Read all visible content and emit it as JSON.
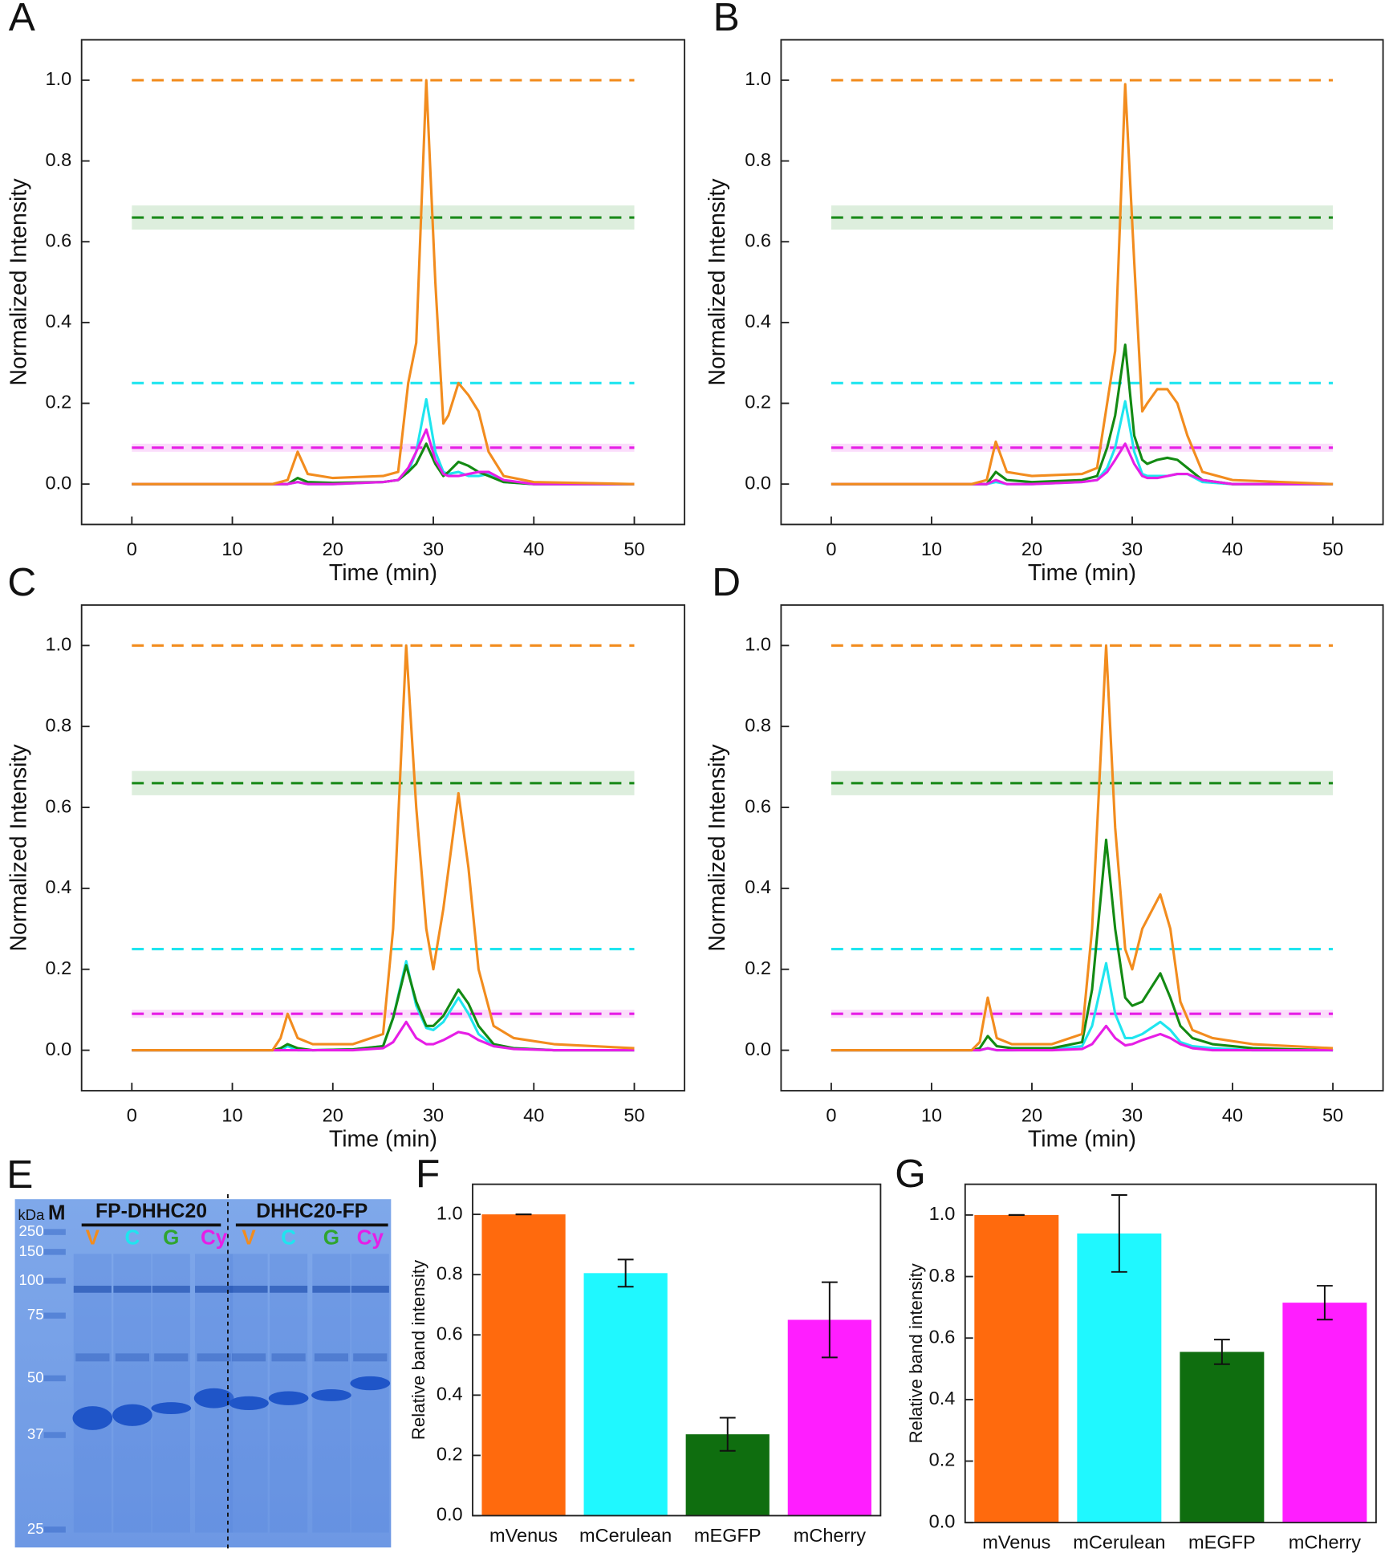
{
  "chart_data": [
    {
      "type": "line",
      "panel_label": "A",
      "xlabel": "Time (min)",
      "ylabel": "Normalized Intensity",
      "xlim": [
        -5,
        55
      ],
      "ylim": [
        -0.1,
        1.1
      ],
      "xticks": [
        0,
        10,
        20,
        30,
        40,
        50
      ],
      "yticks": [
        {
          "value": 0,
          "label": "0.0"
        },
        {
          "value": 0.2,
          "label": "0.2"
        },
        {
          "value": 0.4,
          "label": "0.4"
        },
        {
          "value": 0.6,
          "label": "0.6"
        },
        {
          "value": 0.8,
          "label": "0.8"
        },
        {
          "value": 1,
          "label": "1.0"
        }
      ],
      "reference_lines": [
        {
          "value": 1.0,
          "color": "#f28c1e"
        },
        {
          "value": 0.66,
          "color": "#1a8a1a",
          "band": [
            0.63,
            0.69
          ]
        },
        {
          "value": 0.25,
          "color": "#1fe5ef"
        },
        {
          "value": 0.09,
          "color": "#e61ee6",
          "band": [
            0.08,
            0.1
          ]
        }
      ],
      "x": [
        0,
        14,
        15.5,
        16.5,
        17.5,
        20,
        25,
        26.5,
        27.5,
        28.3,
        29.3,
        30.2,
        31,
        31.5,
        32.5,
        33.5,
        34.5,
        35.5,
        37,
        40,
        50
      ],
      "series": [
        {
          "color": "#1fe5ef",
          "values": [
            0,
            0,
            0,
            0.005,
            0,
            0,
            0.005,
            0.01,
            0.03,
            0.08,
            0.21,
            0.08,
            0.03,
            0.025,
            0.03,
            0.02,
            0.02,
            0.025,
            0.005,
            0,
            0
          ]
        },
        {
          "color": "#138a13",
          "values": [
            0,
            0,
            0,
            0.015,
            0.005,
            0.003,
            0.005,
            0.01,
            0.03,
            0.05,
            0.1,
            0.05,
            0.02,
            0.03,
            0.055,
            0.045,
            0.03,
            0.02,
            0.005,
            0,
            0
          ]
        },
        {
          "color": "#e61ee6",
          "values": [
            0,
            0,
            0,
            0.005,
            0,
            0,
            0.005,
            0.01,
            0.04,
            0.08,
            0.135,
            0.06,
            0.025,
            0.02,
            0.02,
            0.025,
            0.03,
            0.03,
            0.01,
            0,
            0
          ]
        },
        {
          "color": "#f28c1e",
          "values": [
            0,
            0,
            0.01,
            0.08,
            0.025,
            0.015,
            0.02,
            0.03,
            0.25,
            0.35,
            1.0,
            0.5,
            0.15,
            0.17,
            0.25,
            0.22,
            0.18,
            0.08,
            0.02,
            0.005,
            0
          ]
        }
      ]
    },
    {
      "type": "line",
      "panel_label": "B",
      "xlabel": "Time (min)",
      "ylabel": "Normalized Intensity",
      "xlim": [
        -5,
        55
      ],
      "ylim": [
        -0.1,
        1.1
      ],
      "xticks": [
        0,
        10,
        20,
        30,
        40,
        50
      ],
      "yticks": [
        {
          "value": 0,
          "label": "0.0"
        },
        {
          "value": 0.2,
          "label": "0.2"
        },
        {
          "value": 0.4,
          "label": "0.4"
        },
        {
          "value": 0.6,
          "label": "0.6"
        },
        {
          "value": 0.8,
          "label": "0.8"
        },
        {
          "value": 1,
          "label": "1.0"
        }
      ],
      "reference_lines": [
        {
          "value": 1.0,
          "color": "#f28c1e"
        },
        {
          "value": 0.66,
          "color": "#1a8a1a",
          "band": [
            0.63,
            0.69
          ]
        },
        {
          "value": 0.25,
          "color": "#1fe5ef"
        },
        {
          "value": 0.09,
          "color": "#e61ee6",
          "band": [
            0.08,
            0.1
          ]
        }
      ],
      "x": [
        0,
        14,
        15.5,
        16.4,
        17.5,
        20,
        25,
        26.5,
        27.5,
        28.3,
        29.3,
        30.2,
        31,
        31.5,
        32.5,
        33.5,
        34.5,
        35.5,
        37,
        40,
        50
      ],
      "series": [
        {
          "color": "#1fe5ef",
          "values": [
            0,
            0,
            0,
            0.005,
            0,
            0,
            0.005,
            0.01,
            0.04,
            0.09,
            0.205,
            0.08,
            0.025,
            0.02,
            0.02,
            0.02,
            0.025,
            0.025,
            0.005,
            0,
            0
          ]
        },
        {
          "color": "#138a13",
          "values": [
            0,
            0,
            0,
            0.03,
            0.01,
            0.005,
            0.01,
            0.02,
            0.09,
            0.17,
            0.345,
            0.12,
            0.06,
            0.05,
            0.06,
            0.065,
            0.06,
            0.04,
            0.01,
            0,
            0
          ]
        },
        {
          "color": "#e61ee6",
          "values": [
            0,
            0,
            0,
            0.01,
            0,
            0,
            0.005,
            0.01,
            0.03,
            0.06,
            0.1,
            0.05,
            0.02,
            0.015,
            0.015,
            0.02,
            0.025,
            0.025,
            0.01,
            0,
            0
          ]
        },
        {
          "color": "#f28c1e",
          "values": [
            0,
            0,
            0.01,
            0.105,
            0.03,
            0.02,
            0.025,
            0.04,
            0.2,
            0.33,
            0.99,
            0.55,
            0.18,
            0.2,
            0.235,
            0.235,
            0.2,
            0.12,
            0.03,
            0.01,
            0
          ]
        }
      ]
    },
    {
      "type": "line",
      "panel_label": "C",
      "xlabel": "Time (min)",
      "ylabel": "Normalized Intensity",
      "xlim": [
        -5,
        55
      ],
      "ylim": [
        -0.1,
        1.1
      ],
      "xticks": [
        0,
        10,
        20,
        30,
        40,
        50
      ],
      "yticks": [
        {
          "value": 0,
          "label": "0.0"
        },
        {
          "value": 0.2,
          "label": "0.2"
        },
        {
          "value": 0.4,
          "label": "0.4"
        },
        {
          "value": 0.6,
          "label": "0.6"
        },
        {
          "value": 0.8,
          "label": "0.8"
        },
        {
          "value": 1,
          "label": "1.0"
        }
      ],
      "reference_lines": [
        {
          "value": 1.0,
          "color": "#f28c1e"
        },
        {
          "value": 0.66,
          "color": "#1a8a1a",
          "band": [
            0.63,
            0.69
          ]
        },
        {
          "value": 0.25,
          "color": "#1fe5ef"
        },
        {
          "value": 0.09,
          "color": "#e61ee6",
          "band": [
            0.08,
            0.1
          ]
        }
      ],
      "x": [
        0,
        14,
        14.8,
        15.5,
        16.5,
        18,
        22,
        25,
        26,
        27.3,
        28.3,
        29.3,
        30,
        31,
        32.5,
        33.5,
        34.5,
        36,
        38,
        42,
        50
      ],
      "series": [
        {
          "color": "#1fe5ef",
          "values": [
            0,
            0,
            0,
            0.01,
            0,
            0,
            0.002,
            0.01,
            0.08,
            0.22,
            0.11,
            0.055,
            0.05,
            0.07,
            0.13,
            0.09,
            0.04,
            0.01,
            0.005,
            0,
            0
          ]
        },
        {
          "color": "#138a13",
          "values": [
            0,
            0,
            0.005,
            0.015,
            0.005,
            0,
            0.002,
            0.01,
            0.08,
            0.21,
            0.12,
            0.06,
            0.06,
            0.085,
            0.15,
            0.115,
            0.06,
            0.015,
            0.005,
            0,
            0
          ]
        },
        {
          "color": "#e61ee6",
          "values": [
            0,
            0,
            0,
            0,
            0,
            0,
            0,
            0.005,
            0.02,
            0.07,
            0.03,
            0.015,
            0.015,
            0.025,
            0.045,
            0.04,
            0.025,
            0.01,
            0.003,
            0,
            0
          ]
        },
        {
          "color": "#f28c1e",
          "values": [
            0,
            0,
            0.03,
            0.09,
            0.03,
            0.015,
            0.015,
            0.04,
            0.3,
            1.0,
            0.6,
            0.3,
            0.2,
            0.35,
            0.635,
            0.45,
            0.2,
            0.06,
            0.03,
            0.015,
            0.005
          ]
        }
      ]
    },
    {
      "type": "line",
      "panel_label": "D",
      "xlabel": "Time (min)",
      "ylabel": "Normalized Intensity",
      "xlim": [
        -5,
        55
      ],
      "ylim": [
        -0.1,
        1.1
      ],
      "xticks": [
        0,
        10,
        20,
        30,
        40,
        50
      ],
      "yticks": [
        {
          "value": 0,
          "label": "0.0"
        },
        {
          "value": 0.2,
          "label": "0.2"
        },
        {
          "value": 0.4,
          "label": "0.4"
        },
        {
          "value": 0.6,
          "label": "0.6"
        },
        {
          "value": 0.8,
          "label": "0.8"
        },
        {
          "value": 1,
          "label": "1.0"
        }
      ],
      "reference_lines": [
        {
          "value": 1.0,
          "color": "#f28c1e"
        },
        {
          "value": 0.66,
          "color": "#1a8a1a",
          "band": [
            0.63,
            0.69
          ]
        },
        {
          "value": 0.25,
          "color": "#1fe5ef"
        },
        {
          "value": 0.09,
          "color": "#e61ee6",
          "band": [
            0.08,
            0.1
          ]
        }
      ],
      "x": [
        0,
        14,
        14.8,
        15.6,
        16.5,
        18,
        22,
        25,
        26,
        27.4,
        28.3,
        29.3,
        30,
        31,
        32.8,
        33.8,
        34.8,
        36,
        38,
        42,
        50
      ],
      "series": [
        {
          "color": "#1fe5ef",
          "values": [
            0,
            0,
            0,
            0.005,
            0,
            0,
            0.002,
            0.01,
            0.06,
            0.215,
            0.09,
            0.03,
            0.03,
            0.04,
            0.07,
            0.05,
            0.02,
            0.01,
            0.005,
            0,
            0
          ]
        },
        {
          "color": "#138a13",
          "values": [
            0,
            0,
            0.005,
            0.035,
            0.01,
            0.005,
            0.005,
            0.02,
            0.15,
            0.52,
            0.3,
            0.13,
            0.11,
            0.12,
            0.19,
            0.13,
            0.06,
            0.03,
            0.015,
            0.005,
            0
          ]
        },
        {
          "color": "#e61ee6",
          "values": [
            0,
            0,
            0,
            0.005,
            0,
            0,
            0,
            0.003,
            0.015,
            0.06,
            0.03,
            0.012,
            0.015,
            0.025,
            0.04,
            0.03,
            0.015,
            0.005,
            0,
            0,
            0
          ]
        },
        {
          "color": "#f28c1e",
          "values": [
            0,
            0,
            0.02,
            0.13,
            0.03,
            0.015,
            0.015,
            0.04,
            0.3,
            1.0,
            0.55,
            0.25,
            0.2,
            0.3,
            0.385,
            0.3,
            0.12,
            0.05,
            0.03,
            0.015,
            0.005
          ]
        }
      ]
    },
    {
      "type": "bar",
      "panel_label": "F",
      "ylabel": "Relative band intensity",
      "categories": [
        "mVenus",
        "mCerulean",
        "mEGFP",
        "mCherry"
      ],
      "values": [
        1.0,
        0.805,
        0.27,
        0.65
      ],
      "errors": [
        0,
        0.045,
        0.055,
        0.125
      ],
      "colors": [
        "#ff6a0d",
        "#1ff8ff",
        "#0f6e0f",
        "#ff1eff"
      ],
      "ylim": [
        0,
        1.1
      ],
      "yticks": [
        {
          "value": 0,
          "label": "0.0"
        },
        {
          "value": 0.2,
          "label": "0.2"
        },
        {
          "value": 0.4,
          "label": "0.4"
        },
        {
          "value": 0.6,
          "label": "0.6"
        },
        {
          "value": 0.8,
          "label": "0.8"
        },
        {
          "value": 1,
          "label": "1.0"
        }
      ]
    },
    {
      "type": "bar",
      "panel_label": "G",
      "ylabel": "Relative band intensity",
      "categories": [
        "mVenus",
        "mCerulean",
        "mEGFP",
        "mCherry"
      ],
      "values": [
        1.0,
        0.94,
        0.555,
        0.715
      ],
      "errors": [
        0,
        0.125,
        0.04,
        0.055
      ],
      "colors": [
        "#ff6a0d",
        "#1ff8ff",
        "#0f6e0f",
        "#ff1eff"
      ],
      "ylim": [
        0,
        1.1
      ],
      "yticks": [
        {
          "value": 0,
          "label": "0.0"
        },
        {
          "value": 0.2,
          "label": "0.2"
        },
        {
          "value": 0.4,
          "label": "0.4"
        },
        {
          "value": 0.6,
          "label": "0.6"
        },
        {
          "value": 0.8,
          "label": "0.8"
        },
        {
          "value": 1,
          "label": "1.0"
        }
      ]
    }
  ],
  "gel": {
    "panel_label": "E",
    "unit_label": "kDa",
    "marker_label": "M",
    "markers": [
      250,
      150,
      100,
      75,
      50,
      37,
      25
    ],
    "groups": [
      "FP-DHHC20",
      "DHHC20-FP"
    ],
    "lanes": [
      {
        "label": "V",
        "color": "#f28c1e"
      },
      {
        "label": "C",
        "color": "#1fe5ef"
      },
      {
        "label": "G",
        "color": "#2fa52f"
      },
      {
        "label": "Cy",
        "color": "#e61ee6"
      },
      {
        "label": "V",
        "color": "#f28c1e"
      },
      {
        "label": "C",
        "color": "#1fe5ef"
      },
      {
        "label": "G",
        "color": "#2fa52f"
      },
      {
        "label": "Cy",
        "color": "#e61ee6"
      }
    ]
  }
}
